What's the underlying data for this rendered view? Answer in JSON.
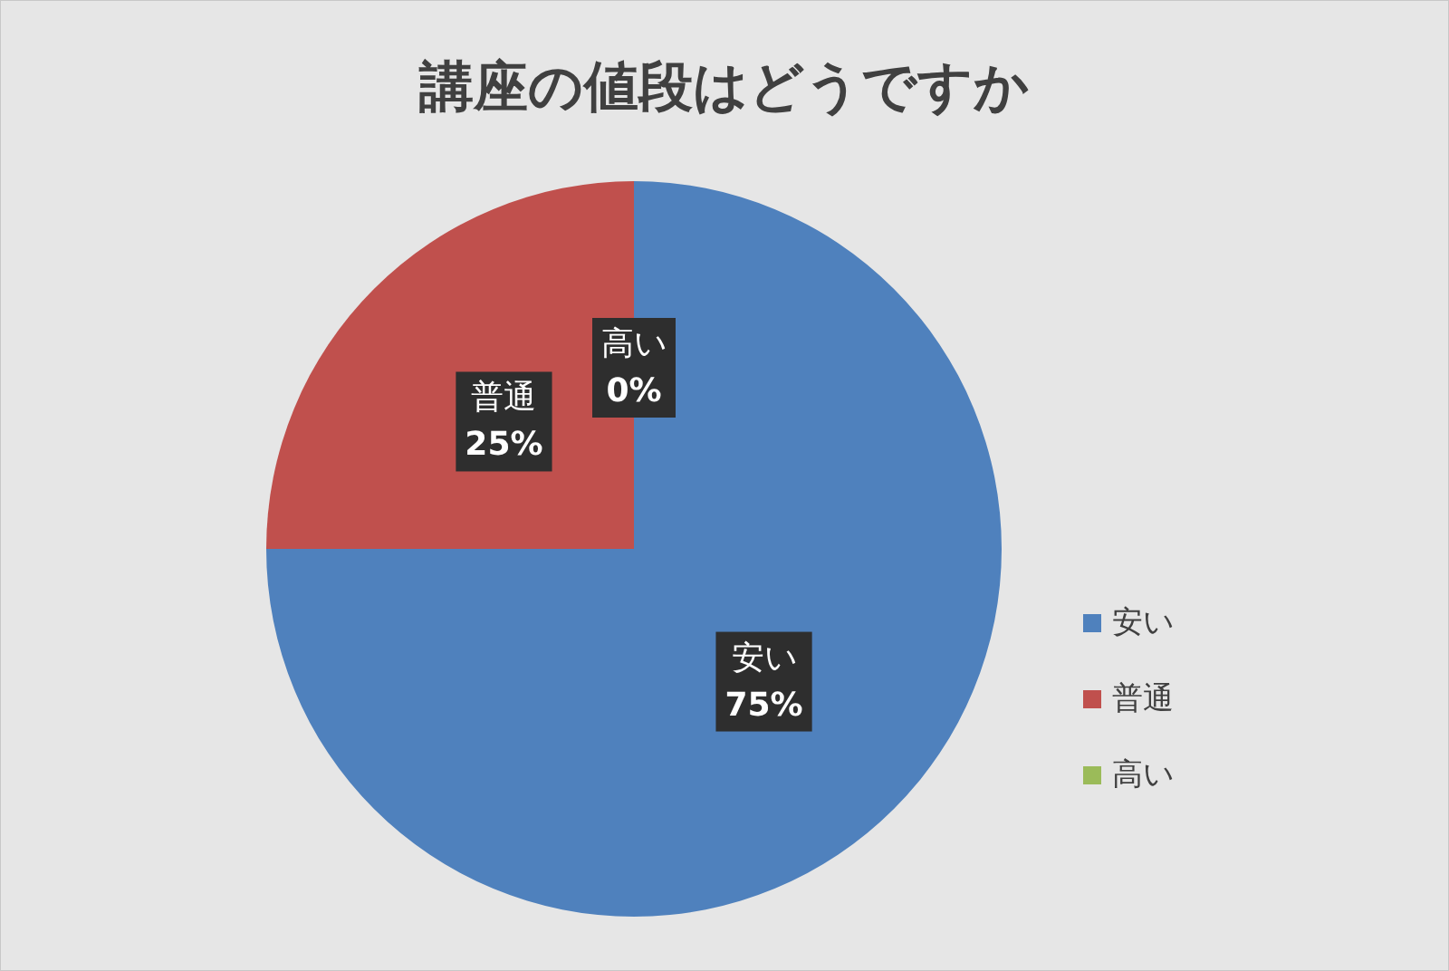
{
  "chart_data": {
    "type": "pie",
    "title": "講座の値段はどうですか",
    "categories": [
      "安い",
      "普通",
      "高い"
    ],
    "values": [
      75,
      25,
      0
    ],
    "colors": [
      "#4f81bd",
      "#c0504d",
      "#9bbb59"
    ],
    "value_labels": [
      "75%",
      "25%",
      "0%"
    ],
    "legend": "right"
  }
}
